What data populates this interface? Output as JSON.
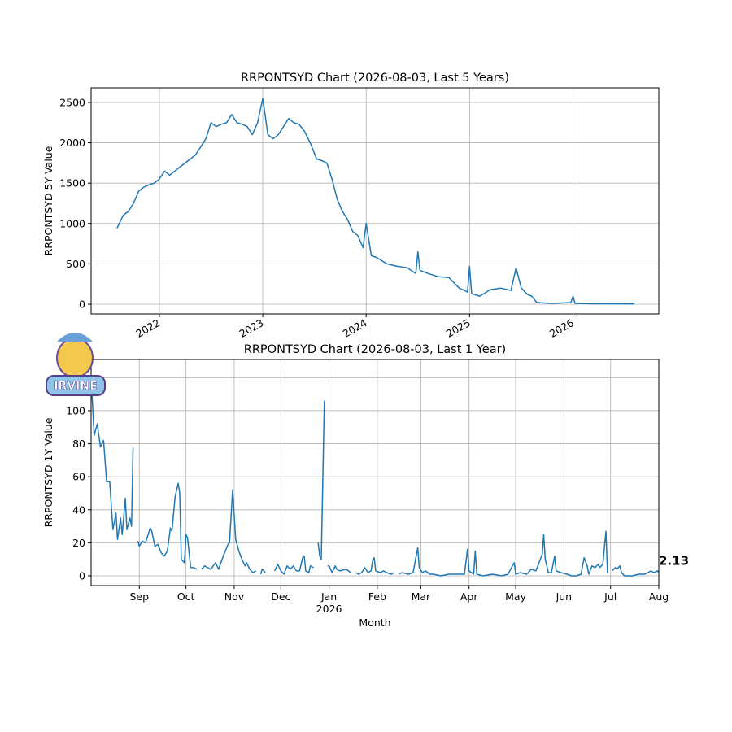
{
  "chart_data": [
    {
      "type": "line",
      "title": "RRPONTSYD Chart (2026-08-03, Last 5 Years)",
      "y_label": "RRPONTSYD 5Y Value",
      "color": "#1f77b4",
      "grid": true,
      "xtick_rotation": 30,
      "xlim": [
        2021.34,
        2026.83
      ],
      "ylim": [
        -121,
        2681
      ],
      "xticks": [
        2022,
        2023,
        2024,
        2025,
        2026
      ],
      "yticks": [
        0,
        500,
        1000,
        1500,
        2000,
        2500
      ],
      "x": [
        2021.59,
        2021.65,
        2021.7,
        2021.75,
        2021.8,
        2021.85,
        2021.9,
        2021.95,
        2022.0,
        2022.05,
        2022.1,
        2022.15,
        2022.2,
        2022.25,
        2022.3,
        2022.35,
        2022.4,
        2022.45,
        2022.5,
        2022.55,
        2022.6,
        2022.65,
        2022.7,
        2022.75,
        2022.8,
        2022.85,
        2022.9,
        2022.95,
        2023.0,
        2023.05,
        2023.1,
        2023.15,
        2023.2,
        2023.25,
        2023.3,
        2023.35,
        2023.4,
        2023.46,
        2023.52,
        2023.57,
        2023.62,
        2023.67,
        2023.72,
        2023.77,
        2023.82,
        2023.87,
        2023.92,
        2023.97,
        2024.0,
        2024.05,
        2024.1,
        2024.2,
        2024.3,
        2024.4,
        2024.48,
        2024.5,
        2024.52,
        2024.6,
        2024.7,
        2024.8,
        2024.9,
        2024.98,
        2025.0,
        2025.02,
        2025.1,
        2025.2,
        2025.3,
        2025.4,
        2025.45,
        2025.5,
        2025.56,
        2025.6,
        2025.65,
        2025.8,
        2025.98,
        2026.0,
        2026.02,
        2026.2,
        2026.4,
        2026.59
      ],
      "values": [
        940,
        1100,
        1150,
        1250,
        1400,
        1450,
        1480,
        1500,
        1550,
        1650,
        1600,
        1650,
        1700,
        1750,
        1800,
        1850,
        1950,
        2050,
        2250,
        2200,
        2230,
        2250,
        2350,
        2250,
        2230,
        2200,
        2100,
        2250,
        2550,
        2100,
        2050,
        2100,
        2200,
        2300,
        2250,
        2230,
        2150,
        2000,
        1800,
        1780,
        1750,
        1550,
        1300,
        1150,
        1050,
        900,
        850,
        700,
        1000,
        600,
        580,
        500,
        470,
        450,
        380,
        650,
        420,
        380,
        340,
        330,
        200,
        150,
        470,
        130,
        100,
        180,
        200,
        170,
        450,
        200,
        120,
        100,
        20,
        10,
        20,
        100,
        10,
        5,
        5,
        3
      ]
    },
    {
      "type": "line",
      "title": "RRPONTSYD Chart (2026-08-03, Last 1 Year)",
      "y_label": "RRPONTSYD 1Y Value",
      "x_label": "Month",
      "color": "#1f77b4",
      "grid": true,
      "xtick_rotation": 0,
      "xlim": [
        0,
        365
      ],
      "ylim": [
        -5.9,
        131
      ],
      "xticks": [
        {
          "value": 31,
          "label": "Sep"
        },
        {
          "value": 61,
          "label": "Oct"
        },
        {
          "value": 92,
          "label": "Nov"
        },
        {
          "value": 122,
          "label": "Dec"
        },
        {
          "value": 153,
          "label": "Jan\n2026"
        },
        {
          "value": 184,
          "label": "Feb"
        },
        {
          "value": 212,
          "label": "Mar"
        },
        {
          "value": 243,
          "label": "Apr"
        },
        {
          "value": 273,
          "label": "May"
        },
        {
          "value": 304,
          "label": "Jun"
        },
        {
          "value": 334,
          "label": "Jul"
        },
        {
          "value": 365,
          "label": "Aug"
        }
      ],
      "yticks": [
        0,
        20,
        40,
        60,
        80,
        100,
        120
      ],
      "x": [
        0,
        2,
        4,
        6,
        8,
        10,
        12,
        14,
        16,
        17,
        19,
        20,
        22,
        23,
        25,
        26,
        27,
        28,
        30,
        31,
        33,
        35,
        38,
        39,
        41,
        43,
        45,
        47,
        49,
        51,
        52,
        54,
        56,
        57,
        58,
        60,
        61,
        62,
        64,
        66,
        68,
        69,
        71,
        73,
        75,
        77,
        80,
        82,
        85,
        88,
        89,
        91,
        93,
        95,
        97,
        99,
        100,
        102,
        104,
        106,
        107,
        109,
        110,
        112,
        113,
        118,
        120,
        122,
        124,
        126,
        128,
        130,
        132,
        134,
        136,
        137,
        138,
        140,
        141,
        143,
        144,
        146,
        147,
        148,
        150,
        151,
        152,
        153,
        155,
        157,
        158,
        160,
        164,
        167,
        168,
        170,
        172,
        174,
        176,
        178,
        180,
        181,
        182,
        183,
        186,
        188,
        190,
        193,
        195,
        196,
        198,
        200,
        204,
        207,
        210,
        211,
        213,
        215,
        218,
        220,
        225,
        230,
        235,
        240,
        242,
        243,
        246,
        247,
        248,
        252,
        258,
        264,
        268,
        272,
        273,
        276,
        280,
        283,
        286,
        290,
        291,
        292,
        294,
        296,
        298,
        299,
        302,
        306,
        309,
        312,
        315,
        317,
        319,
        320,
        322,
        324,
        326,
        327,
        329,
        331,
        332,
        333,
        335,
        337,
        338,
        340,
        341,
        343,
        348,
        352,
        356,
        358,
        360,
        362,
        364,
        365
      ],
      "values": [
        120,
        85,
        92,
        78,
        82,
        57,
        57,
        28,
        38,
        22,
        35,
        25,
        47,
        28,
        35,
        30,
        78,
        null,
        21,
        18,
        21,
        20,
        29,
        27,
        18,
        19,
        14,
        12,
        15,
        29,
        27,
        48,
        56,
        50,
        10,
        8,
        25,
        23,
        5,
        5,
        4,
        null,
        4,
        6,
        5,
        4,
        8,
        4,
        12,
        19,
        20,
        52,
        22,
        15,
        10,
        6,
        8,
        4,
        2,
        3,
        null,
        1,
        4,
        2,
        null,
        3,
        7,
        3,
        1,
        6,
        4,
        6,
        3,
        3,
        11,
        12,
        3,
        2,
        6,
        5,
        null,
        20,
        12,
        10,
        106,
        null,
        6,
        6,
        2,
        6,
        4,
        3,
        4,
        2,
        null,
        2,
        1,
        2,
        5,
        2,
        3,
        9,
        11,
        3,
        2,
        3,
        2,
        1,
        2,
        null,
        1,
        2,
        1,
        2,
        17,
        5,
        2,
        3,
        1,
        1,
        0,
        1,
        1,
        1,
        16,
        3,
        1,
        15,
        1,
        0,
        1,
        0,
        1,
        8,
        1,
        2,
        1,
        4,
        3,
        13,
        25,
        10,
        2,
        2,
        12,
        3,
        2,
        1,
        0,
        0,
        1,
        11,
        6,
        1,
        6,
        5,
        7,
        5,
        7,
        27,
        2,
        null,
        3,
        5,
        4,
        6,
        2,
        0,
        0,
        1,
        1,
        2,
        3,
        2,
        3,
        2.13
      ],
      "annotation": {
        "x": 365,
        "y": 2.13,
        "label": "2.13"
      }
    }
  ],
  "logo_text": "IRVINE"
}
